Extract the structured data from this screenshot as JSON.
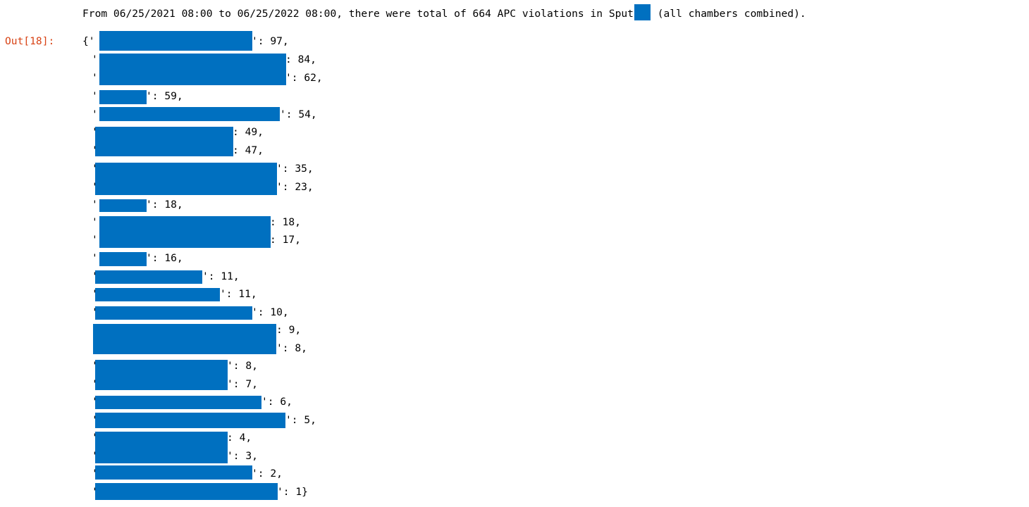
{
  "colors": {
    "prompt": "#d84315",
    "redaction": "#0070c0",
    "text": "#000000",
    "background": "#ffffff"
  },
  "stdout": {
    "before": "From 06/25/2021 08:00 to 06/25/2022 08:00, there were total of 664 APC violations in Sput",
    "after": " (all chambers combined)."
  },
  "cell": {
    "prompt": "Out[18]:",
    "open": "{'",
    "entries": [
      {
        "value": 97,
        "suffix": "': 97,"
      },
      {
        "value": 84,
        "suffix": ": 84,"
      },
      {
        "value": 62,
        "suffix": "': 62,"
      },
      {
        "value": 59,
        "suffix": "': 59,"
      },
      {
        "value": 54,
        "suffix": "': 54,"
      },
      {
        "value": 49,
        "suffix": ": 49,"
      },
      {
        "value": 47,
        "suffix": ": 47,"
      },
      {
        "value": 35,
        "suffix": "': 35,"
      },
      {
        "value": 23,
        "suffix": "': 23,"
      },
      {
        "value": 18,
        "suffix": "': 18,"
      },
      {
        "value": 18,
        "suffix": ": 18,"
      },
      {
        "value": 17,
        "suffix": ": 17,"
      },
      {
        "value": 16,
        "suffix": "': 16,"
      },
      {
        "value": 11,
        "suffix": "': 11,"
      },
      {
        "value": 11,
        "suffix": "': 11,"
      },
      {
        "value": 10,
        "suffix": "': 10,"
      },
      {
        "value": 9,
        "suffix": ": 9,"
      },
      {
        "value": 8,
        "suffix": "': 8,"
      },
      {
        "value": 8,
        "suffix": "': 8,"
      },
      {
        "value": 7,
        "suffix": "': 7,"
      },
      {
        "value": 6,
        "suffix": "': 6,"
      },
      {
        "value": 5,
        "suffix": "': 5,"
      },
      {
        "value": 4,
        "suffix": ": 4,"
      },
      {
        "value": 3,
        "suffix": "': 3,"
      },
      {
        "value": 2,
        "suffix": "': 2,"
      },
      {
        "value": 1,
        "suffix": "': 1}"
      }
    ]
  }
}
